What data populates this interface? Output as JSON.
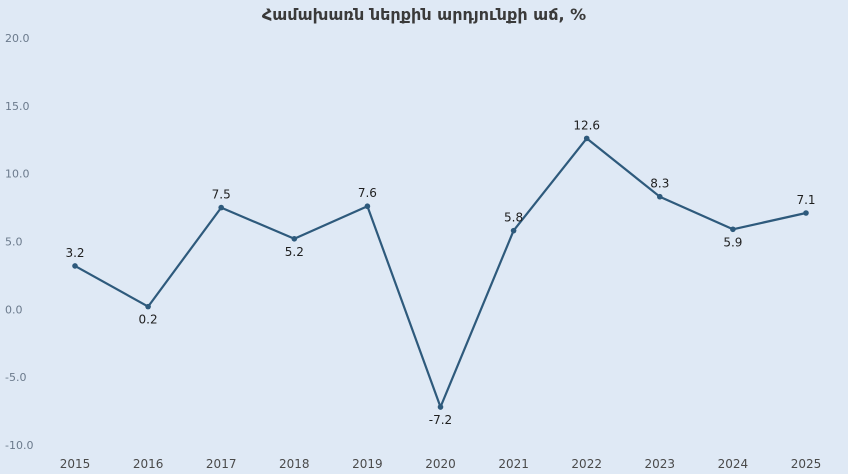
{
  "chart_data": {
    "type": "line",
    "title": "Համախառն ներքին արդյունքի աճ, %",
    "xlabel": "",
    "ylabel": "",
    "x": [
      "2015",
      "2016",
      "2017",
      "2018",
      "2019",
      "2020",
      "2021",
      "2022",
      "2023",
      "2024",
      "2025"
    ],
    "series": [
      {
        "values": [
          3.2,
          0.2,
          7.5,
          5.2,
          7.6,
          -7.2,
          5.8,
          12.6,
          8.3,
          5.9,
          7.1
        ]
      }
    ],
    "data_labels": [
      "3.2",
      "0.2",
      "7.5",
      "5.2",
      "7.6",
      "-7.2",
      "5.8",
      "12.6",
      "8.3",
      "5.9",
      "7.1"
    ],
    "yticks": [
      "20.0",
      "15.0",
      "10.0",
      "5.0",
      "0.0",
      "-5.0",
      "-10.0"
    ],
    "ylim": [
      -10,
      20
    ],
    "grid": false,
    "legend": "none",
    "colors": {
      "line": "#2e5a7c",
      "marker": "#2e5a7c",
      "highlight_label": "#d9302c",
      "label": "#1f1f1f"
    },
    "highlight_index": 10
  }
}
